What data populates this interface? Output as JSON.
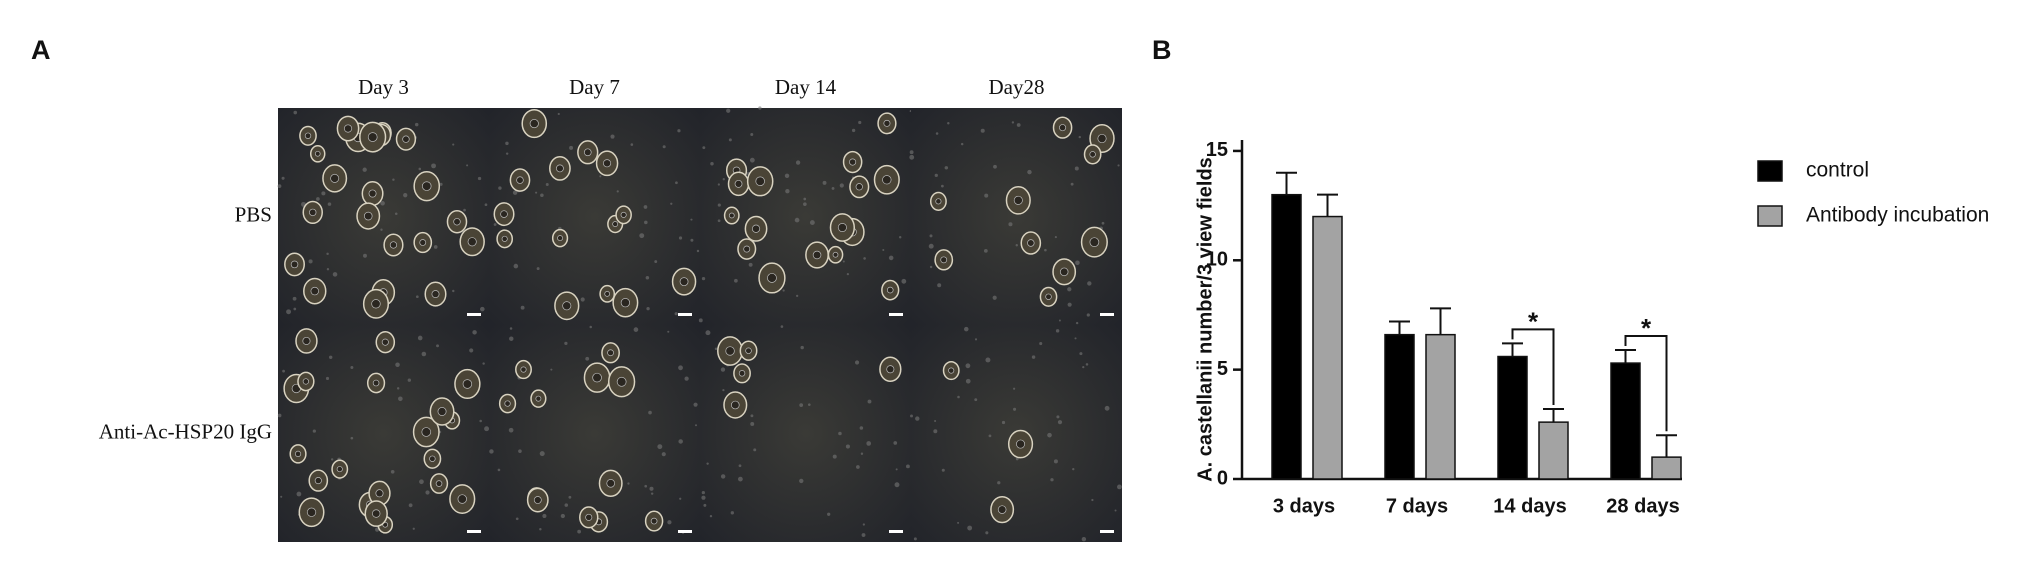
{
  "panel_a": {
    "label": "A",
    "columns": [
      "Day 3",
      "Day 7",
      "Day 14",
      "Day28"
    ],
    "rows": [
      "PBS",
      "Anti-Ac-HSP20  IgG"
    ]
  },
  "panel_b_label": "B",
  "chart_data": {
    "type": "bar",
    "y_label": "A. castellanii number/3 view fields",
    "categories": [
      "3 days",
      "7 days",
      "14 days",
      "28 days"
    ],
    "series": [
      {
        "name": "control",
        "color": "#000000",
        "values": [
          13,
          6.6,
          5.6,
          5.3
        ],
        "errors": [
          1.0,
          0.6,
          0.6,
          0.6
        ]
      },
      {
        "name": "Antibody incubation",
        "color": "#a3a3a3",
        "values": [
          12,
          6.6,
          2.6,
          1.0
        ],
        "errors": [
          1.0,
          1.2,
          0.6,
          1.0
        ]
      }
    ],
    "significance": [
      null,
      null,
      "*",
      "*"
    ],
    "ylim": [
      0,
      15.5
    ],
    "yticks": [
      0,
      5,
      10,
      15
    ],
    "legend": "right"
  }
}
